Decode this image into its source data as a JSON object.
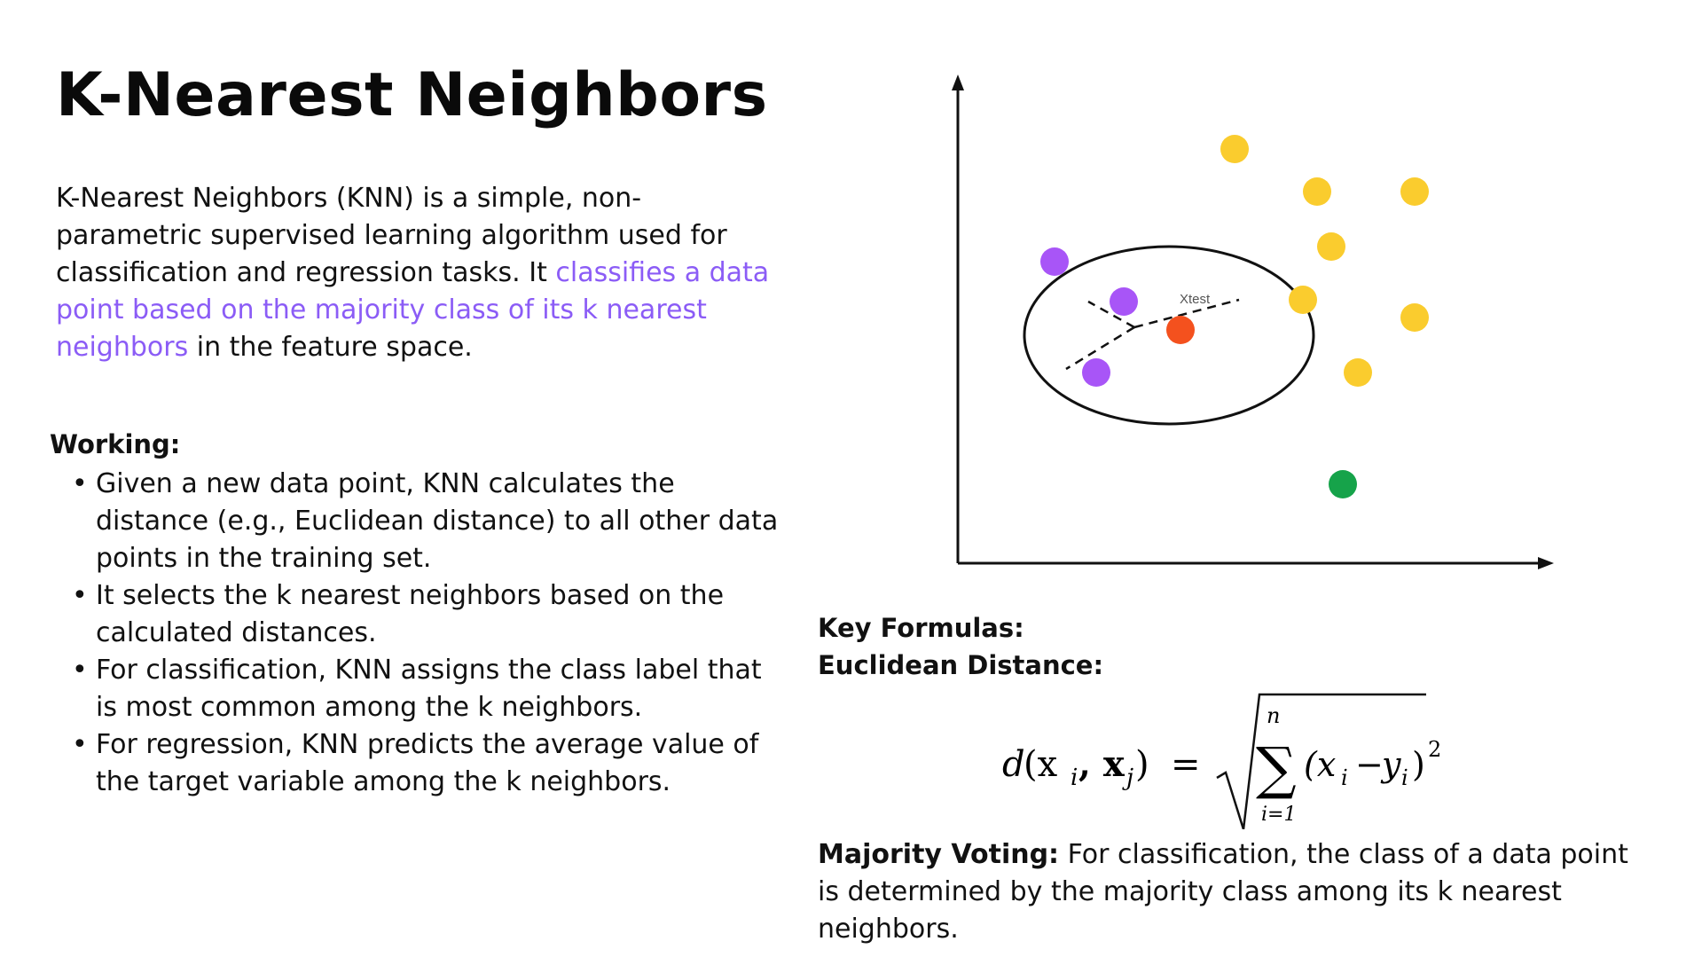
{
  "title": "K-Nearest Neighbors",
  "intro": {
    "part1": "K-Nearest Neighbors (KNN) is a simple, non-parametric supervised learning algorithm used for classification and regression tasks. It ",
    "highlight": "classifies a data point based on the majority class of its k nearest neighbors",
    "part2": " in the feature space."
  },
  "working": {
    "heading": "Working:",
    "bullet": "•",
    "steps": [
      "Given a new data point, KNN calculates the distance (e.g., Euclidean distance) to all other data points in the training set.",
      "It selects the k nearest neighbors based on the calculated distances.",
      "For classification, KNN assigns the class label that is most common among the k neighbors.",
      "For regression, KNN predicts the average value of the target variable among the k neighbors."
    ]
  },
  "plot": {
    "test_label": "Xtest",
    "colors": {
      "class_a": "#facc2e",
      "class_b": "#a855f7",
      "test": "#f4511e",
      "other": "#16a34a",
      "axis": "#111111"
    }
  },
  "formulas": {
    "heading": "Key Formulas:",
    "euclidean_heading": "Euclidean Distance:",
    "euclidean": {
      "lhs_d": "d",
      "lhs_args": "(x",
      "sub_i": "i",
      "comma": ", x",
      "sub_j": "j",
      "close": ")",
      "equals": "=",
      "sigma": "∑",
      "upper": "n",
      "lower": "i=1",
      "term": "(x",
      "term_sub_i": "i",
      "minus": "−",
      "y": "y",
      "y_sub": "i",
      "close2": ")",
      "power": "2"
    }
  },
  "voting": {
    "label": "Majority Voting:",
    "text": " For classification, the class of a data point is determined by the majority class among its k nearest neighbors."
  }
}
